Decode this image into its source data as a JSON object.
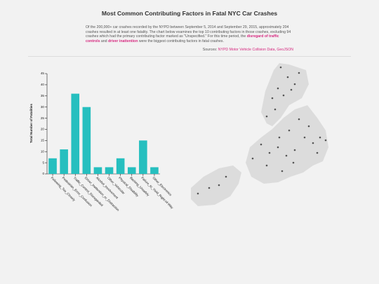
{
  "header": {
    "title": "Most Common Contributing Factors in Fatal NYC Car Crashes",
    "intro": {
      "text_before": "Of the 200,000+ car crashes recorded by the NYPD between September 5, 2014 and September 29, 2015, approximately 204 crashes resulted in at least one fatality. The chart below examines the top 10 contributing factors in those crashes, excluding 94 crashes which had the primary contributing factor marked as \"Unspecified.\" For this time period, the ",
      "highlight_1": "disregard of traffic controls",
      "middle": " and ",
      "highlight_2": "driver inattention",
      "text_after": " were the biggest contributing factors in fatal crashes."
    },
    "sources": {
      "label": "Sources:",
      "links": [
        "NYPD Motor Vehicle Collision Data,",
        "GeoJSON"
      ]
    }
  },
  "chart_data": {
    "type": "bar",
    "y_label": "Total Number of Fatalities",
    "categories": [
      "Following_Too_Closely",
      "Pedestrian_Error_Confusion",
      "Traffic_Control_Disregarded",
      "Driver_Inattention_or_Distraction",
      "Alcohol_Involvement",
      "Other_Vehicular",
      "Physical_Disability",
      "Backing_Unsafely",
      "Failure_to_Yield_Right-of-Way",
      "Other_Electronics"
    ],
    "values": [
      7,
      11,
      36,
      30,
      3,
      3,
      7,
      3,
      15,
      3
    ],
    "color": "#26bfbf",
    "ylim": [
      0,
      45
    ],
    "yticks": [
      0,
      5,
      10,
      15,
      20,
      25,
      30,
      35,
      40,
      45
    ]
  }
}
